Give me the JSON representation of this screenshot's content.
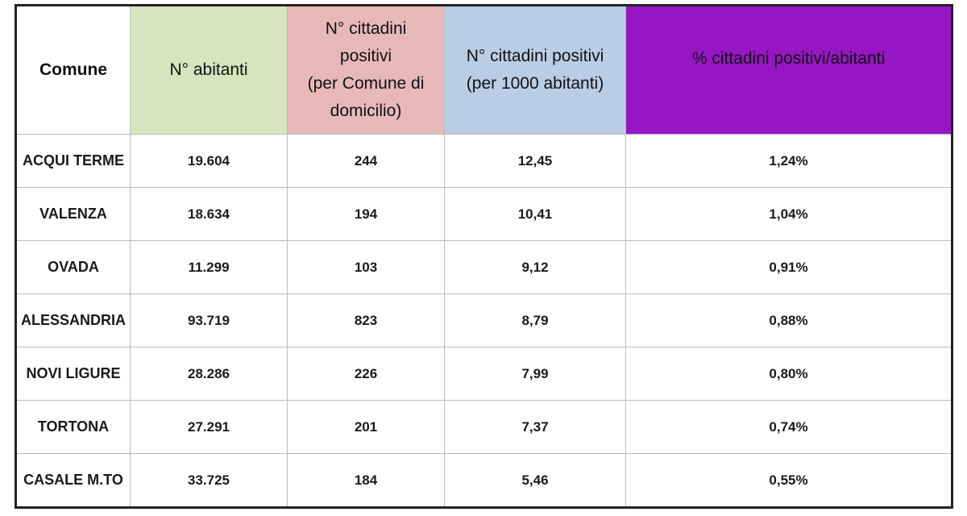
{
  "table": {
    "header": [
      [
        "Comune"
      ],
      [
        "N° abitanti"
      ],
      [
        "N° cittadini",
        "positivi",
        "(per Comune di",
        "domicilio)"
      ],
      [
        "N° cittadini positivi",
        "(per 1000 abitanti)"
      ],
      [
        "% cittadini positivi/abitanti"
      ]
    ],
    "rows": [
      [
        "ACQUI TERME",
        "19.604",
        "244",
        "12,45",
        "1,24%"
      ],
      [
        "VALENZA",
        "18.634",
        "194",
        "10,41",
        "1,04%"
      ],
      [
        "OVADA",
        "11.299",
        "103",
        "9,12",
        "0,91%"
      ],
      [
        "ALESSANDRIA",
        "93.719",
        "823",
        "8,79",
        "0,88%"
      ],
      [
        "NOVI LIGURE",
        "28.286",
        "226",
        "7,99",
        "0,80%"
      ],
      [
        "TORTONA",
        "27.291",
        "201",
        "7,37",
        "0,74%"
      ],
      [
        "CASALE M.TO",
        "33.725",
        "184",
        "5,46",
        "0,55%"
      ]
    ]
  }
}
